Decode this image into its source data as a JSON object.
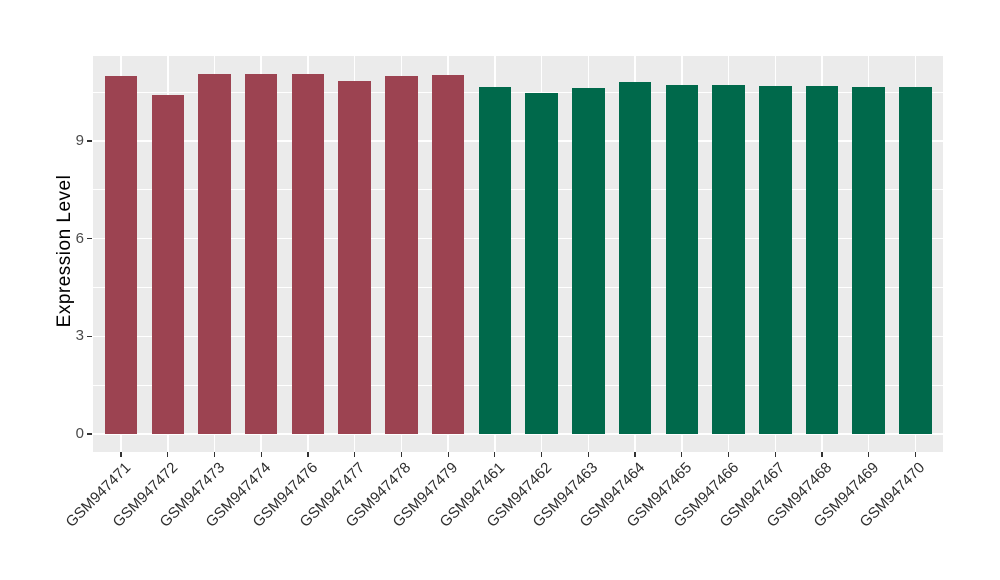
{
  "chart_data": {
    "type": "bar",
    "title": "",
    "xlabel": "",
    "ylabel": "Expression Level",
    "yticks": [
      0,
      3,
      6,
      9
    ],
    "minor_gridlines": [
      1.5,
      4.5,
      7.5,
      10.5
    ],
    "ylim": [
      0,
      11.06
    ],
    "panel_value_range": [
      -0.57,
      11.62
    ],
    "grid": true,
    "legend_position": "none",
    "panel_background": "#EBEBEB",
    "gridline_color": "#FFFFFF",
    "tick_color": "#333333",
    "groups": [
      {
        "name": "group-red",
        "color": "#9C4351",
        "samples": [
          {
            "label": "GSM947471",
            "value": 11.0
          },
          {
            "label": "GSM947472",
            "value": 10.42
          },
          {
            "label": "GSM947473",
            "value": 11.06
          },
          {
            "label": "GSM947474",
            "value": 11.06
          },
          {
            "label": "GSM947476",
            "value": 11.06
          },
          {
            "label": "GSM947477",
            "value": 10.85
          },
          {
            "label": "GSM947478",
            "value": 11.0
          },
          {
            "label": "GSM947479",
            "value": 11.04
          }
        ]
      },
      {
        "name": "group-green",
        "color": "#00694B",
        "samples": [
          {
            "label": "GSM947461",
            "value": 10.67
          },
          {
            "label": "GSM947462",
            "value": 10.49
          },
          {
            "label": "GSM947463",
            "value": 10.63
          },
          {
            "label": "GSM947464",
            "value": 10.81
          },
          {
            "label": "GSM947465",
            "value": 10.72
          },
          {
            "label": "GSM947466",
            "value": 10.72
          },
          {
            "label": "GSM947467",
            "value": 10.69
          },
          {
            "label": "GSM947468",
            "value": 10.7
          },
          {
            "label": "GSM947469",
            "value": 10.66
          },
          {
            "label": "GSM947470",
            "value": 10.66
          }
        ]
      }
    ]
  }
}
